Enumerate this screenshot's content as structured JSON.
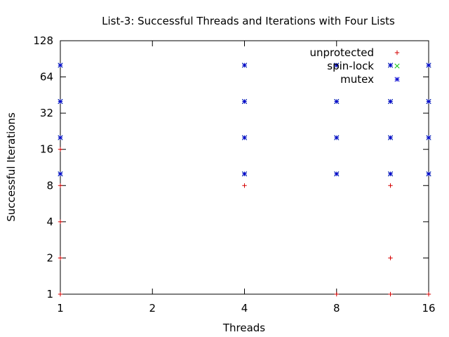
{
  "chart_data": {
    "type": "scatter",
    "title": "List-3: Successful Threads and Iterations with Four Lists",
    "xlabel": "Threads",
    "ylabel": "Successful Iterations",
    "x_scale": "log2",
    "y_scale": "log2",
    "xlim": [
      1,
      16
    ],
    "ylim": [
      1,
      128
    ],
    "x_ticks": [
      1,
      2,
      4,
      8,
      16
    ],
    "x_tick_labels": [
      "1",
      "2",
      "4",
      "8",
      "16"
    ],
    "y_ticks": [
      1,
      2,
      4,
      8,
      16,
      32,
      64,
      128
    ],
    "y_tick_labels": [
      "1",
      "2",
      "4",
      "8",
      "16",
      "32",
      "64",
      "128"
    ],
    "grid": false,
    "legend_position": "top-right",
    "series": [
      {
        "name": "unprotected",
        "marker": "plus",
        "color": "#d40000",
        "points": [
          [
            1,
            1
          ],
          [
            1,
            2
          ],
          [
            1,
            4
          ],
          [
            1,
            8
          ],
          [
            1,
            16
          ],
          [
            4,
            8
          ],
          [
            8,
            1
          ],
          [
            12,
            1
          ],
          [
            12,
            2
          ],
          [
            12,
            8
          ],
          [
            16,
            1
          ]
        ]
      },
      {
        "name": "spin-lock",
        "marker": "cross",
        "color": "#00c000",
        "points": [
          [
            1,
            10
          ],
          [
            1,
            20
          ],
          [
            1,
            40
          ],
          [
            1,
            80
          ],
          [
            4,
            10
          ],
          [
            4,
            20
          ],
          [
            4,
            40
          ],
          [
            4,
            80
          ],
          [
            8,
            10
          ],
          [
            8,
            20
          ],
          [
            8,
            40
          ],
          [
            8,
            80
          ],
          [
            12,
            10
          ],
          [
            12,
            20
          ],
          [
            12,
            40
          ],
          [
            12,
            80
          ],
          [
            16,
            10
          ],
          [
            16,
            20
          ],
          [
            16,
            40
          ],
          [
            16,
            80
          ]
        ]
      },
      {
        "name": "mutex",
        "marker": "star",
        "color": "#0000d0",
        "points": [
          [
            1,
            10
          ],
          [
            1,
            20
          ],
          [
            1,
            40
          ],
          [
            1,
            80
          ],
          [
            4,
            10
          ],
          [
            4,
            20
          ],
          [
            4,
            40
          ],
          [
            4,
            80
          ],
          [
            8,
            10
          ],
          [
            8,
            20
          ],
          [
            8,
            40
          ],
          [
            8,
            80
          ],
          [
            12,
            10
          ],
          [
            12,
            20
          ],
          [
            12,
            40
          ],
          [
            12,
            80
          ],
          [
            16,
            10
          ],
          [
            16,
            20
          ],
          [
            16,
            40
          ],
          [
            16,
            80
          ]
        ]
      }
    ]
  }
}
